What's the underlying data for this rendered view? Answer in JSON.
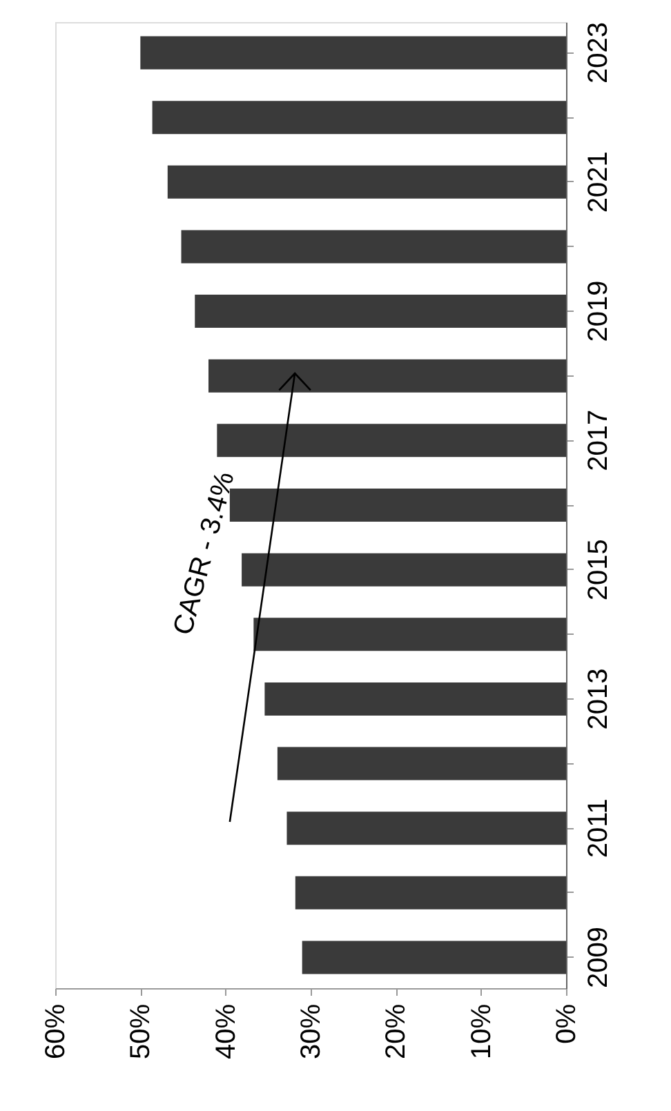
{
  "chart_data": {
    "type": "bar",
    "orientation": "horizontal",
    "categories": [
      "2023",
      null,
      "2021",
      null,
      "2019",
      null,
      "2017",
      null,
      "2015",
      null,
      "2013",
      null,
      "2011",
      null,
      "2009"
    ],
    "values": [
      50.0,
      48.6,
      46.8,
      45.2,
      43.6,
      42.0,
      41.0,
      39.5,
      38.1,
      36.7,
      35.4,
      33.9,
      32.8,
      31.8,
      31.0
    ],
    "color": "#3a3a3a",
    "xlim": [
      60,
      0
    ],
    "xticks": [
      {
        "value": 0,
        "label": "0%"
      },
      {
        "value": 10,
        "label": "10%"
      },
      {
        "value": 20,
        "label": "20%"
      },
      {
        "value": 30,
        "label": "30%"
      },
      {
        "value": 40,
        "label": "40%"
      },
      {
        "value": 50,
        "label": "50%"
      },
      {
        "value": 60,
        "label": "60%"
      }
    ],
    "annotations": [
      "CAGR - 3.4%"
    ],
    "grid": false
  }
}
